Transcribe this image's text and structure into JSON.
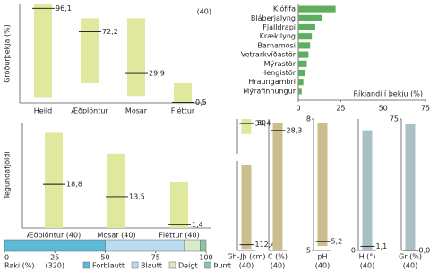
{
  "chart_data": [
    {
      "type": "range",
      "ylabel": "Gróðurþekja (%)",
      "note": "(40)",
      "categories": [
        "Heild",
        "Æðplöntur",
        "Mosar",
        "Fléttur"
      ],
      "low": [
        5,
        20,
        7,
        0
      ],
      "high": [
        100,
        86,
        86,
        20
      ],
      "median": [
        96.1,
        72.2,
        29.9,
        0.5
      ],
      "median_labels": [
        "96,1",
        "72,2",
        "29,9",
        "0,5"
      ],
      "ylim": [
        0,
        100
      ],
      "color": "#dfe89c"
    },
    {
      "type": "barh",
      "xlabel": "Ríkjandi í þekju (%)",
      "categories": [
        "Klófífa",
        "Bláberjalyng",
        "Fjalldrapi",
        "Krækilyng",
        "Barnamosi",
        "Vetrarkvíðastör",
        "Mýrastör",
        "Hengistör",
        "Hraungambri",
        "Mýrafinnungur"
      ],
      "values": [
        22,
        14,
        10,
        8,
        7,
        6,
        5,
        4,
        3,
        2
      ],
      "xlim": [
        0,
        75
      ],
      "xticks": [
        0,
        25,
        50,
        75
      ],
      "color": "#5fae5f"
    },
    {
      "type": "range",
      "ylabel": "Tegundafjöldi",
      "categories": [
        "Æðplöntur (40)",
        "Mosar (40)",
        "Fléttur (40)"
      ],
      "low": [
        0,
        0,
        0
      ],
      "high": [
        41,
        32,
        20
      ],
      "median": [
        18.8,
        13.5,
        1.4
      ],
      "median_labels": [
        "18,8",
        "13,5",
        "1,4"
      ],
      "ylim": [
        0,
        45
      ],
      "color": "#dfe89c"
    },
    {
      "type": "stacked-barh",
      "xlabel": "Raki (%)",
      "note": "(320)",
      "xlim": [
        0,
        100
      ],
      "xticks": [
        0,
        25,
        50,
        75,
        100
      ],
      "series": [
        {
          "name": "Forblautt",
          "color": "#5bbad5",
          "values": [
            50
          ]
        },
        {
          "name": "Blautt",
          "color": "#b9dcef",
          "values": [
            39
          ]
        },
        {
          "name": "Deigt",
          "color": "#d9e9cb",
          "values": [
            8
          ]
        },
        {
          "name": "Þurrt",
          "color": "#8fc3a6",
          "values": [
            3
          ]
        }
      ]
    },
    {
      "type": "range",
      "low": [
        20
      ],
      "high": [
        35
      ],
      "median": [
        30.4
      ],
      "median_labels": [
        "30,4"
      ],
      "ylim": [
        0,
        35
      ],
      "color": "#dfe89c"
    },
    {
      "type": "range",
      "xlabel": "Gh-Jþ (cm)",
      "note": "(40)",
      "inverted": true,
      "low": [
        5
      ],
      "high": [
        118
      ],
      "median": [
        112.4
      ],
      "median_labels": [
        "112,4"
      ],
      "ylim": [
        0,
        120
      ],
      "color": "#cbbd8e"
    },
    {
      "type": "range",
      "xlabel": "C (%)",
      "note": "(40)",
      "low": [
        0
      ],
      "high": [
        30
      ],
      "median": [
        28.3
      ],
      "median_labels": [
        "28,3"
      ],
      "ylim": [
        0,
        31
      ],
      "yticks": [
        30
      ],
      "color": "#cbbd8e"
    },
    {
      "type": "range",
      "xlabel": "pH",
      "note": "(40)",
      "low": [
        5.1
      ],
      "high": [
        7.9
      ],
      "median": [
        5.2
      ],
      "median_labels": [
        "5,2"
      ],
      "ylim": [
        5,
        8
      ],
      "yticks": [
        5,
        8
      ],
      "color": "#cbbd8e"
    },
    {
      "type": "range",
      "xlabel": "H (°)",
      "note": "(40)",
      "low": [
        0
      ],
      "high": [
        32
      ],
      "median": [
        1.1
      ],
      "median_labels": [
        "1,1"
      ],
      "ylim": [
        0,
        35
      ],
      "yticks": [
        0
      ],
      "color": "#aac0c4"
    },
    {
      "type": "range",
      "xlabel": "Gr (%)",
      "note": "(40)",
      "low": [
        0
      ],
      "high": [
        72
      ],
      "median": [
        0.0
      ],
      "median_labels": [
        "0,0"
      ],
      "ylim": [
        0,
        75
      ],
      "yticks": [
        75
      ],
      "color": "#aac0c4"
    }
  ]
}
